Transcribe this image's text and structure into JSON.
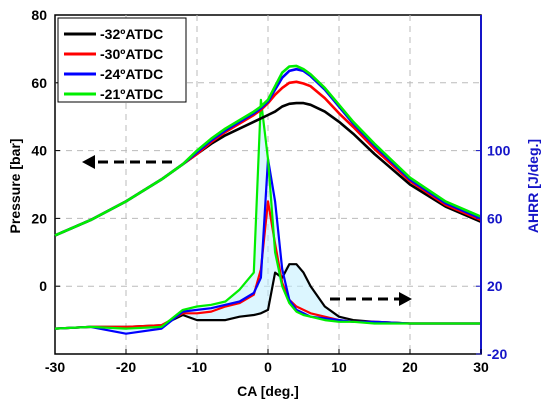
{
  "chart_data": {
    "type": "line",
    "x": [
      -30,
      -25,
      -20,
      -15,
      -12,
      -10,
      -8,
      -6,
      -4,
      -2,
      -1,
      0,
      1,
      2,
      3,
      4,
      5,
      6,
      8,
      10,
      12,
      15,
      20,
      25,
      30
    ],
    "xlabel": "CA [deg.]",
    "ylabel_left": "Pressure [bar]",
    "ylabel_right": "AHRR [J/deg.]",
    "xlim": [
      -30,
      30
    ],
    "ylim_left": [
      -20,
      80
    ],
    "ylim_right": [
      -20,
      180
    ],
    "x_ticks": [
      "-30",
      "-20",
      "-10",
      "0",
      "10",
      "20",
      "30"
    ],
    "y_left_ticks": [
      "0",
      "20",
      "40",
      "60",
      "80"
    ],
    "y_right_ticks": [
      "-20",
      "20",
      "60",
      "100"
    ],
    "grid": true,
    "legend": {
      "position": "top-left"
    },
    "colors": {
      "right_axis": "#1515c8",
      "band": "#bfefff"
    },
    "pressure_series": [
      {
        "name": "-32ºATDC",
        "color": "#000000",
        "values": [
          15,
          19.5,
          25,
          31.5,
          36,
          39,
          42,
          44.5,
          46.5,
          48.5,
          49.5,
          50.5,
          51.5,
          53,
          53.8,
          54,
          54,
          53.5,
          51.5,
          48.5,
          45,
          39,
          30,
          23.5,
          19
        ]
      },
      {
        "name": "-30ºATDC",
        "color": "#ff0000",
        "values": [
          15,
          19.5,
          25,
          31.5,
          36,
          39,
          42.5,
          45.5,
          48,
          50.5,
          52,
          54,
          56.5,
          58.5,
          60,
          60.3,
          59.8,
          59,
          55.5,
          51,
          47,
          40.5,
          31,
          24,
          19.5
        ]
      },
      {
        "name": "-24ºATDC",
        "color": "#0000ff",
        "values": [
          15,
          19.5,
          25,
          31.5,
          36,
          39.5,
          43,
          46,
          48.5,
          51,
          52.5,
          54.5,
          58,
          61.5,
          63.5,
          64,
          63.5,
          62,
          58,
          53,
          48,
          41.5,
          31.5,
          24.5,
          20
        ]
      },
      {
        "name": "-21ºATDC",
        "color": "#00ee00",
        "values": [
          15,
          19.5,
          25,
          31.5,
          36,
          40,
          43.5,
          46.5,
          49,
          51.5,
          53,
          55,
          59,
          63,
          64.8,
          65,
          64,
          62.5,
          58.5,
          53.5,
          48.5,
          42,
          32,
          25,
          20.5
        ]
      }
    ],
    "ahrr_series": [
      {
        "name": "-32ºATDC",
        "color": "#000000",
        "values": [
          -5,
          -4,
          -4,
          -3,
          3,
          0,
          0,
          0,
          2,
          3,
          4,
          6,
          28,
          25,
          33,
          33,
          28,
          20,
          8,
          2,
          0,
          -1,
          -2,
          -2,
          -2
        ]
      },
      {
        "name": "-30ºATDC",
        "color": "#ff0000",
        "values": [
          -5,
          -4,
          -4,
          -3,
          4,
          4,
          5,
          8,
          10,
          15,
          30,
          70,
          45,
          22,
          12,
          8,
          6,
          4,
          2,
          0,
          -1,
          -1,
          -2,
          -2,
          -2
        ]
      },
      {
        "name": "-24ºATDC",
        "color": "#0000ff",
        "values": [
          -5,
          -4,
          -8,
          -5,
          5,
          6,
          7,
          9,
          11,
          16,
          25,
          95,
          70,
          30,
          12,
          6,
          4,
          2,
          1,
          0,
          -1,
          -1,
          -2,
          -2,
          -2
        ]
      },
      {
        "name": "-21ºATDC",
        "color": "#00ee00",
        "values": [
          -5,
          -4,
          -5,
          -4,
          6,
          8,
          9,
          11,
          18,
          28,
          130,
          95,
          40,
          20,
          10,
          5,
          3,
          2,
          0,
          -1,
          -1,
          -2,
          -2,
          -2,
          -2
        ]
      }
    ]
  }
}
